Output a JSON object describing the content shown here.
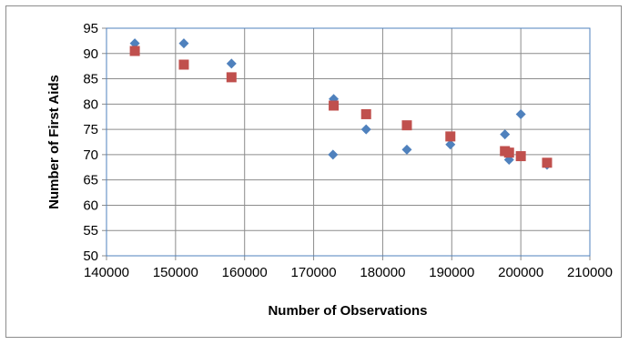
{
  "chart_data": {
    "type": "scatter",
    "title": "",
    "xlabel": "Number of Observations",
    "ylabel": "Number of First Aids",
    "xlim": [
      140000,
      210000
    ],
    "ylim": [
      50,
      95
    ],
    "x_ticks": [
      140000,
      150000,
      160000,
      170000,
      180000,
      190000,
      200000,
      210000
    ],
    "y_ticks": [
      50,
      55,
      60,
      65,
      70,
      75,
      80,
      85,
      90,
      95
    ],
    "grid": true,
    "legend": "none",
    "series": [
      {
        "marker": "diamond",
        "color": "#4f81bd",
        "points": [
          [
            144100,
            92
          ],
          [
            151200,
            92
          ],
          [
            158100,
            88
          ],
          [
            172900,
            81
          ],
          [
            172800,
            70
          ],
          [
            177600,
            75
          ],
          [
            183500,
            71
          ],
          [
            189800,
            72
          ],
          [
            197700,
            74
          ],
          [
            198300,
            69
          ],
          [
            200000,
            78
          ],
          [
            203800,
            68
          ]
        ]
      },
      {
        "marker": "square",
        "color": "#c0504d",
        "points": [
          [
            144100,
            90.5
          ],
          [
            151200,
            87.8
          ],
          [
            158100,
            85.3
          ],
          [
            172900,
            79.7
          ],
          [
            177600,
            78
          ],
          [
            183500,
            75.8
          ],
          [
            189800,
            73.6
          ],
          [
            197700,
            70.7
          ],
          [
            198300,
            70.4
          ],
          [
            200000,
            69.7
          ],
          [
            203800,
            68.4
          ]
        ]
      }
    ]
  }
}
